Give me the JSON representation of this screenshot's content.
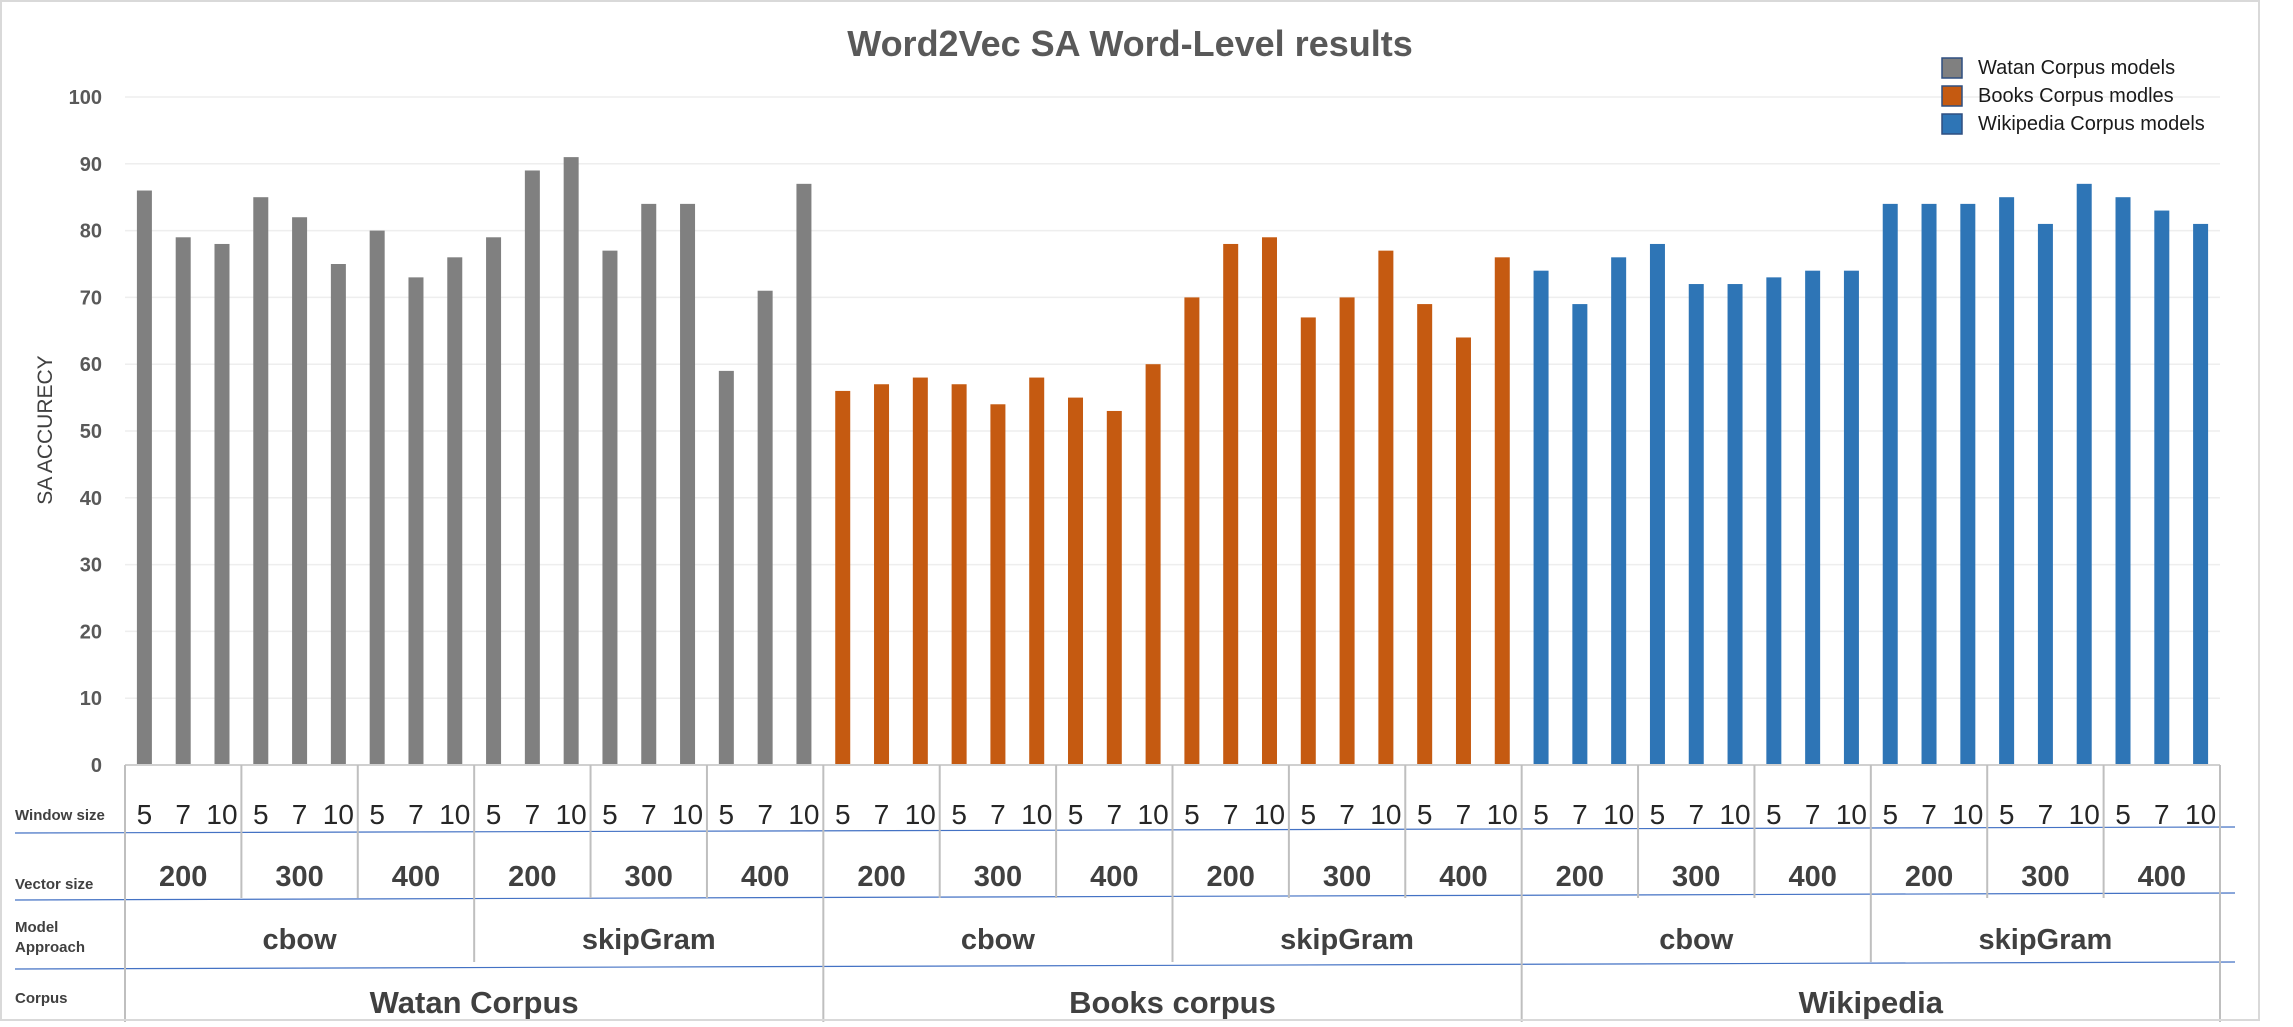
{
  "chart_data": {
    "type": "bar",
    "title": "Word2Vec SA Word-Level results",
    "ylabel": "SA  ACCURECY",
    "ylim": [
      0,
      100
    ],
    "yticks": [
      0,
      10,
      20,
      30,
      40,
      50,
      60,
      70,
      80,
      90,
      100
    ],
    "grid": true,
    "legend_position": "top-right",
    "row_labels": {
      "window": "Window size",
      "vector": "Vector size",
      "model": "Model Approach",
      "corpus": "Corpus"
    },
    "window_sizes": [
      "5",
      "7",
      "10"
    ],
    "vector_sizes": [
      "200",
      "300",
      "400"
    ],
    "model_approaches": [
      "cbow",
      "skipGram"
    ],
    "series": [
      {
        "name": "Watan Corpus models",
        "corpus_label": "Watan  Corpus",
        "color": "#808080",
        "values": [
          86,
          79,
          78,
          85,
          82,
          75,
          80,
          73,
          76,
          79,
          89,
          91,
          77,
          84,
          84,
          59,
          71,
          87
        ]
      },
      {
        "name": "Books Corpus modles",
        "corpus_label": "Books  corpus",
        "color": "#C55A11",
        "values": [
          56,
          57,
          58,
          57,
          54,
          58,
          55,
          53,
          60,
          70,
          78,
          79,
          67,
          70,
          77,
          69,
          64,
          76
        ]
      },
      {
        "name": "Wikipedia Corpus models",
        "corpus_label": "Wikipedia",
        "color": "#2E75B6",
        "values": [
          74,
          69,
          76,
          78,
          72,
          72,
          73,
          74,
          74,
          84,
          84,
          84,
          85,
          81,
          87,
          85,
          83,
          81
        ]
      }
    ]
  }
}
